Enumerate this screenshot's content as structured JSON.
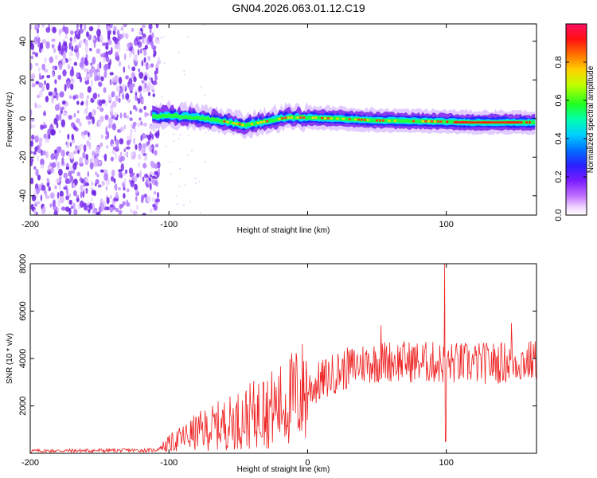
{
  "title": "GN04.2026.063.01.12.C19",
  "chart_data": [
    {
      "type": "heatmap",
      "name": "spectrogram",
      "xlabel": "Height of straight line (km)",
      "ylabel": "Frequency (Hz)",
      "xlim": [
        -200,
        165
      ],
      "ylim": [
        -50,
        49
      ],
      "xticks": [
        -200,
        -100,
        0,
        100
      ],
      "xtick_labels": [
        "-200",
        "-100",
        "",
        "100"
      ],
      "yticks": [
        -40,
        -20,
        0,
        20,
        40
      ],
      "colorbar": {
        "label": "Normalized spectral amplitude",
        "range": [
          0,
          1
        ],
        "ticks": [
          0.0,
          0.2,
          0.4,
          0.6,
          0.8
        ],
        "tick_labels": [
          "0.0",
          "0.2",
          "0.4",
          "0.6",
          "0.8"
        ]
      },
      "noise_region_x": [
        -200,
        -107
      ],
      "signal_track": [
        {
          "x": -112,
          "y": 1.0
        },
        {
          "x": -100,
          "y": 1.5
        },
        {
          "x": -80,
          "y": 0.5
        },
        {
          "x": -60,
          "y": -1.5
        },
        {
          "x": -45,
          "y": -3.5
        },
        {
          "x": -30,
          "y": -1.5
        },
        {
          "x": -15,
          "y": 0.5
        },
        {
          "x": 0,
          "y": 0.5
        },
        {
          "x": 20,
          "y": 0.0
        },
        {
          "x": 50,
          "y": -1.0
        },
        {
          "x": 90,
          "y": -1.5
        },
        {
          "x": 120,
          "y": -2.0
        },
        {
          "x": 165,
          "y": -2.0
        }
      ]
    },
    {
      "type": "line",
      "name": "snr",
      "xlabel": "Height of straight line (km)",
      "ylabel": "SNR (10 * v/v)",
      "xlim": [
        -200,
        165
      ],
      "ylim": [
        0,
        8000
      ],
      "xticks": [
        -200,
        -100,
        0,
        100
      ],
      "xtick_labels": [
        "-200",
        "-100",
        "0",
        "100"
      ],
      "yticks": [
        2000,
        4000,
        6000,
        8000
      ],
      "series_color": "#ee2222",
      "baseline_segments": [
        {
          "x": -200,
          "y": 100
        },
        {
          "x": -110,
          "y": 130
        },
        {
          "x": -100,
          "y": 400
        },
        {
          "x": -80,
          "y": 900
        },
        {
          "x": -50,
          "y": 1400
        },
        {
          "x": -20,
          "y": 2000
        },
        {
          "x": 0,
          "y": 2700
        },
        {
          "x": 20,
          "y": 3400
        },
        {
          "x": 40,
          "y": 3800
        },
        {
          "x": 60,
          "y": 3900
        },
        {
          "x": 80,
          "y": 3850
        },
        {
          "x": 100,
          "y": 3800
        },
        {
          "x": 130,
          "y": 3800
        },
        {
          "x": 165,
          "y": 3900
        }
      ],
      "spikes": [
        {
          "x": 99,
          "y": 8000
        },
        {
          "x": 99.5,
          "y": 500
        },
        {
          "x": -82,
          "y": 1600
        },
        {
          "x": -32,
          "y": 3000
        },
        {
          "x": 53,
          "y": 5400
        },
        {
          "x": 147,
          "y": 5500
        }
      ]
    }
  ]
}
